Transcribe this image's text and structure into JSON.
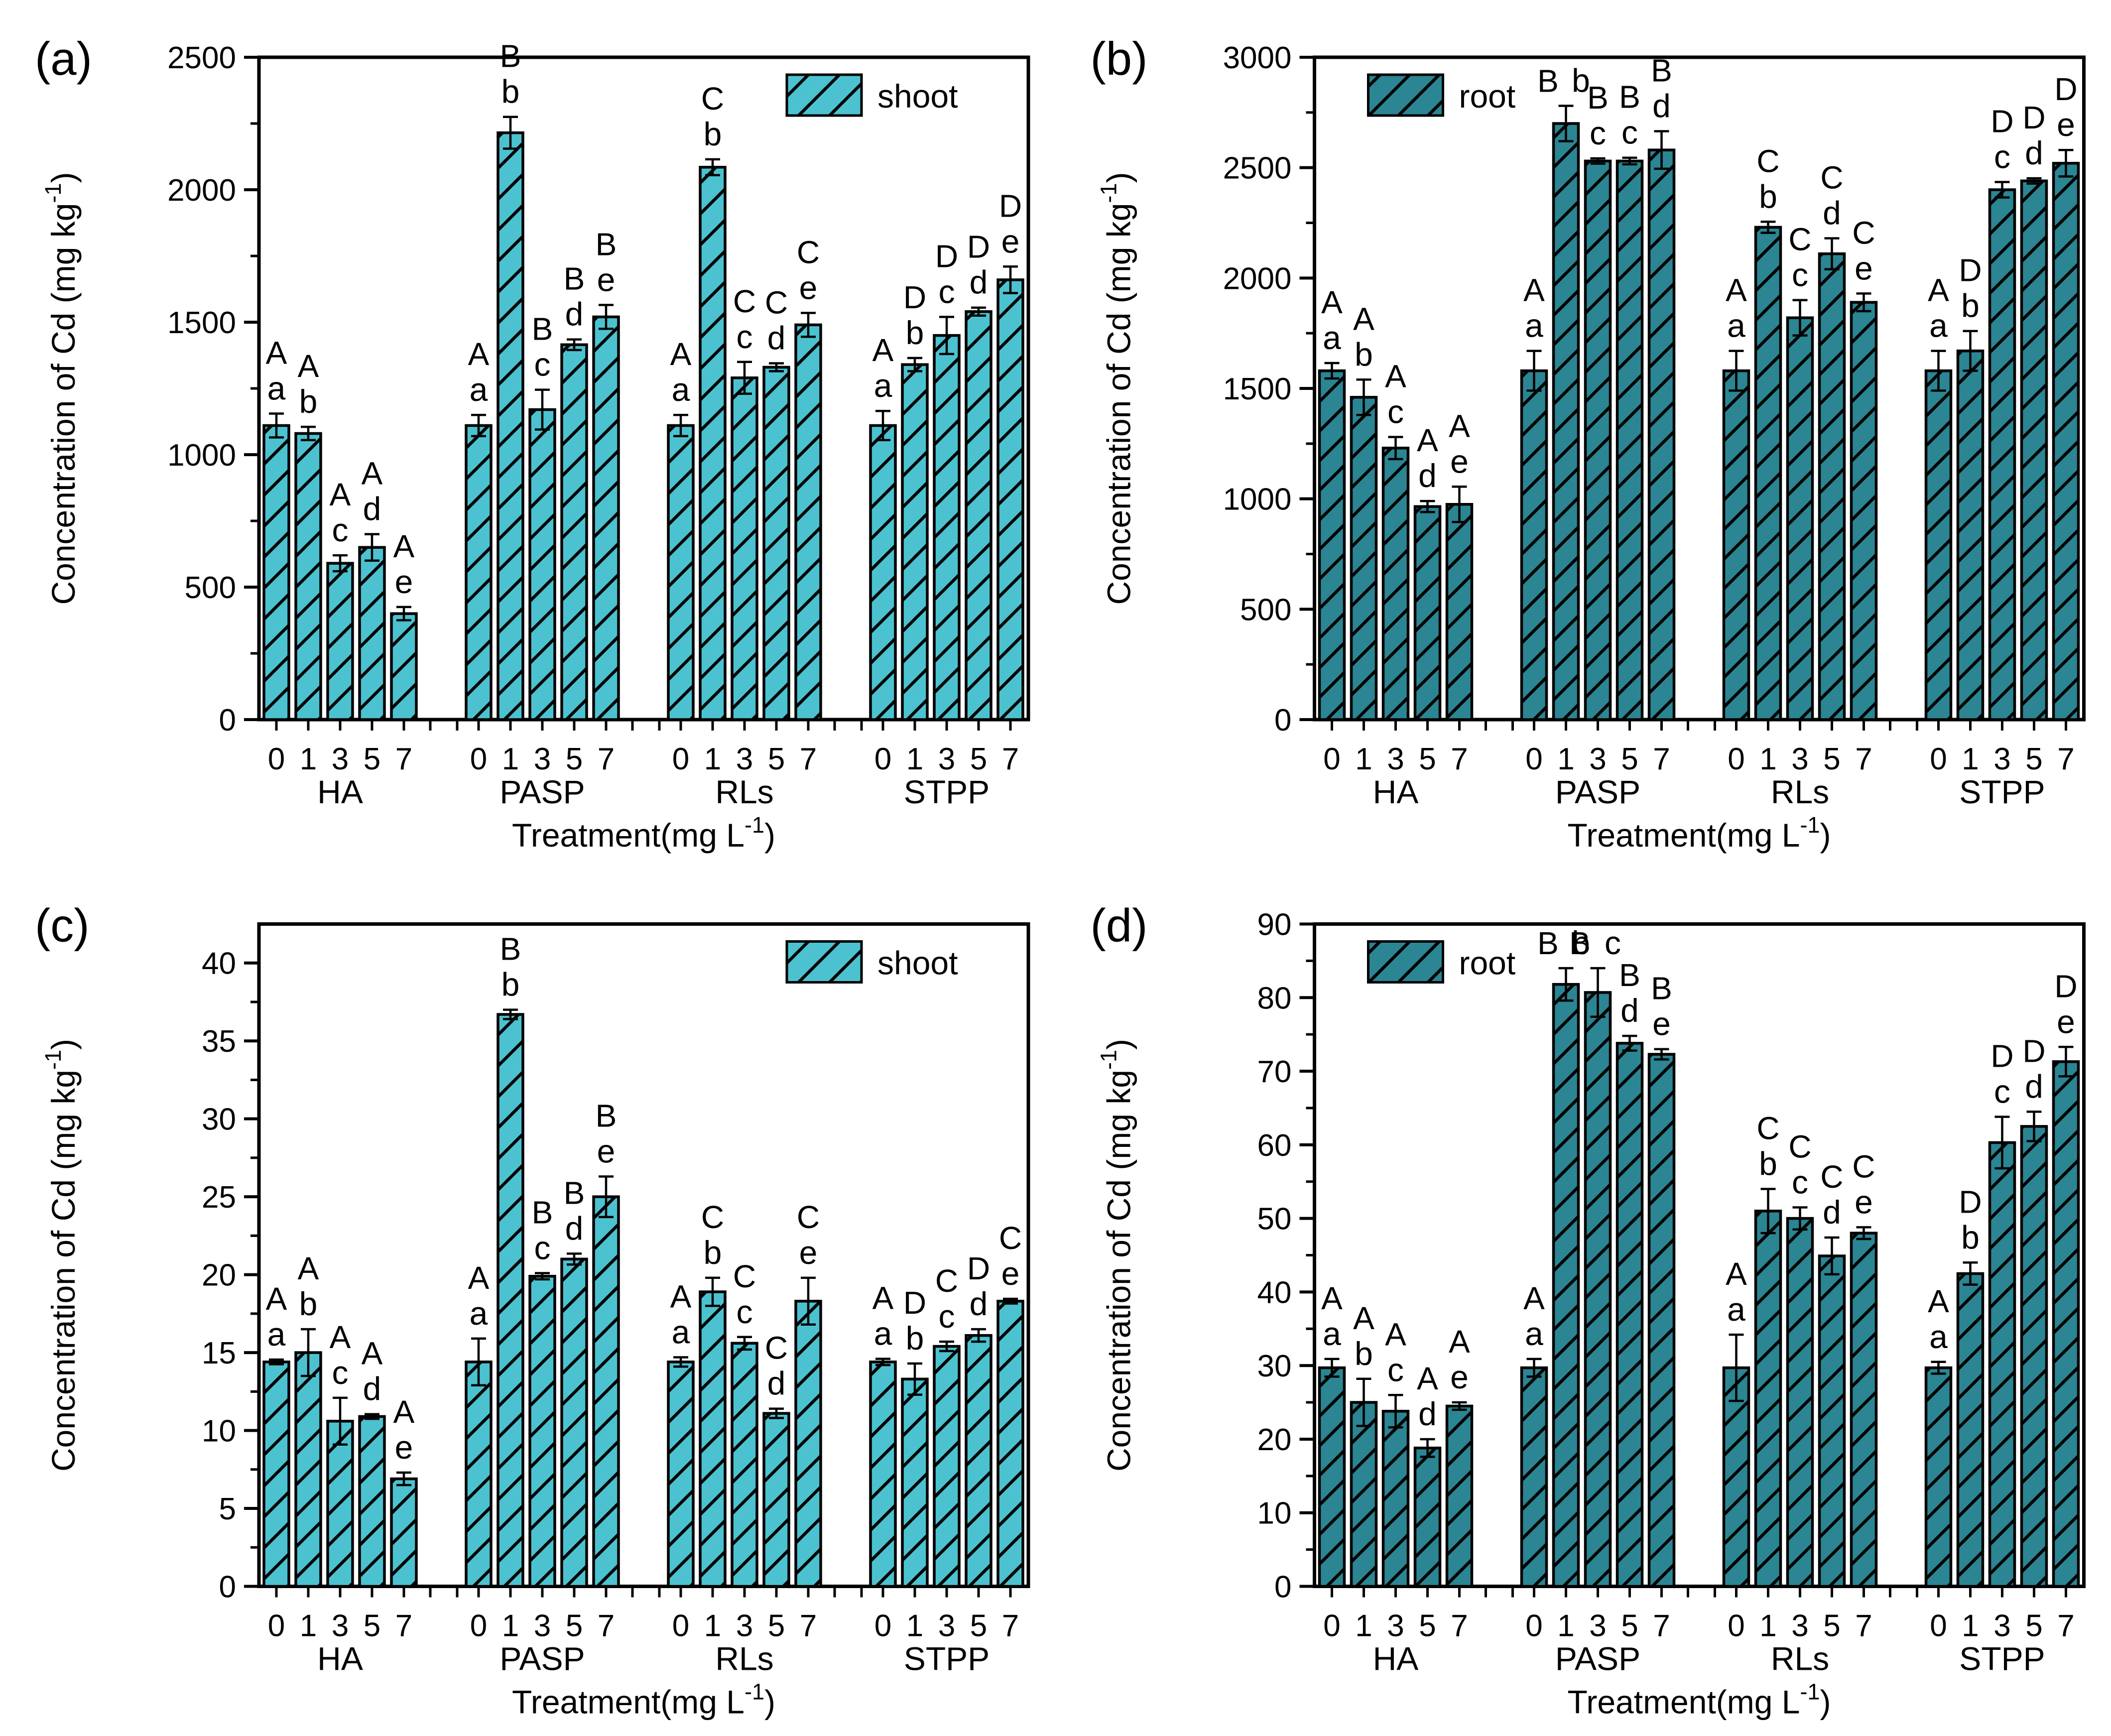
{
  "figure": {
    "xlabel": {
      "pre": "Treatment(mg L",
      "sup": "-1",
      "post": ")"
    },
    "ylabel": {
      "pre": "Concentration of Cd (mg kg",
      "sup": "-1",
      "post": ")"
    },
    "group_names": [
      "HA",
      "PASP",
      "RLs",
      "STPP"
    ],
    "doses": [
      "0",
      "1",
      "3",
      "5",
      "7"
    ],
    "colors": {
      "shoot_fill": "#4cc2d0",
      "root_fill": "#2b8593",
      "letter_blue": "#5fb0f0",
      "letter_black": "#000000",
      "axis": "#000000",
      "background": "#ffffff"
    }
  },
  "chart_data": [
    {
      "id": "a",
      "type": "bar",
      "panel_tag": "(a)",
      "legend_label": "shoot",
      "legend_pos": "top-right",
      "series_color_key": "shoot_fill",
      "ylim": [
        0,
        2500
      ],
      "axis_max": 2500,
      "ytick_major": 500,
      "ytick_minor": 250,
      "categories": [
        "0",
        "1",
        "3",
        "5",
        "7"
      ],
      "groups": [
        {
          "name": "HA",
          "values": [
            1110,
            1080,
            590,
            650,
            400
          ],
          "errors": [
            45,
            25,
            30,
            50,
            25
          ],
          "letters": [
            "Aa",
            "Ab",
            "Ac",
            "Ad",
            "Ae"
          ]
        },
        {
          "name": "PASP",
          "values": [
            1110,
            2215,
            1170,
            1415,
            1520
          ],
          "errors": [
            40,
            60,
            75,
            20,
            45
          ],
          "letters": [
            "Aa",
            "Bb",
            "Bc",
            "Bd",
            "Be"
          ]
        },
        {
          "name": "RLs",
          "values": [
            1110,
            2085,
            1290,
            1330,
            1490
          ],
          "errors": [
            40,
            30,
            60,
            15,
            45
          ],
          "letters": [
            "Aa",
            "Cb",
            "Cc",
            "Cd",
            "Ce"
          ]
        },
        {
          "name": "STPP",
          "values": [
            1110,
            1340,
            1450,
            1540,
            1660
          ],
          "errors": [
            55,
            25,
            70,
            15,
            50
          ],
          "letters": [
            "Aa",
            "Db",
            "Dc",
            "Dd",
            "De"
          ]
        }
      ]
    },
    {
      "id": "b",
      "type": "bar",
      "panel_tag": "(b)",
      "legend_label": "root",
      "legend_pos": "top-left",
      "series_color_key": "root_fill",
      "ylim": [
        0,
        3000
      ],
      "axis_max": 3000,
      "ytick_major": 500,
      "ytick_minor": 250,
      "categories": [
        "0",
        "1",
        "3",
        "5",
        "7"
      ],
      "groups": [
        {
          "name": "HA",
          "values": [
            1580,
            1460,
            1230,
            965,
            975
          ],
          "errors": [
            35,
            80,
            50,
            25,
            80
          ],
          "letters": [
            "Aa",
            "Ab",
            "Ac",
            "Ad",
            "Ae"
          ]
        },
        {
          "name": "PASP",
          "values": [
            1580,
            2700,
            2530,
            2530,
            2580
          ],
          "errors": [
            90,
            80,
            12,
            15,
            85
          ],
          "letters": [
            "Aa",
            "Bb",
            "Bc",
            "Bc",
            "Bd"
          ],
          "inline": [
            0,
            1,
            0,
            0,
            0
          ]
        },
        {
          "name": "RLs",
          "values": [
            1580,
            2230,
            1820,
            2110,
            1890
          ],
          "errors": [
            90,
            25,
            80,
            70,
            40
          ],
          "letters": [
            "Aa",
            "Cb",
            "Cc",
            "Cd",
            "Ce"
          ]
        },
        {
          "name": "STPP",
          "values": [
            1580,
            1670,
            2400,
            2440,
            2520
          ],
          "errors": [
            90,
            90,
            35,
            12,
            60
          ],
          "letters": [
            "Aa",
            "Db",
            "Dc",
            "Dd",
            "De"
          ]
        }
      ]
    },
    {
      "id": "c",
      "type": "bar",
      "panel_tag": "(c)",
      "legend_label": "shoot",
      "legend_pos": "top-right",
      "series_color_key": "shoot_fill",
      "ylim": [
        0,
        40
      ],
      "axis_max": 42.5,
      "ytick_major": 5,
      "ytick_minor": 2.5,
      "categories": [
        "0",
        "1",
        "3",
        "5",
        "7"
      ],
      "groups": [
        {
          "name": "HA",
          "values": [
            14.4,
            15.0,
            10.6,
            10.9,
            6.9
          ],
          "errors": [
            0.15,
            1.5,
            1.5,
            0.15,
            0.4
          ],
          "letters": [
            "Aa",
            "Ab",
            "Ac",
            "Ad",
            "Ae"
          ]
        },
        {
          "name": "PASP",
          "values": [
            14.4,
            36.7,
            19.9,
            21.0,
            25.0
          ],
          "errors": [
            1.5,
            0.3,
            0.2,
            0.35,
            1.3
          ],
          "letters": [
            "Aa",
            "Bb",
            "Bc",
            "Bd",
            "Be"
          ]
        },
        {
          "name": "RLs",
          "values": [
            14.4,
            18.9,
            15.6,
            11.1,
            18.3
          ],
          "errors": [
            0.3,
            0.9,
            0.4,
            0.3,
            1.5
          ],
          "letters": [
            "Aa",
            "Cb",
            "Cc",
            "Cd",
            "Ce"
          ]
        },
        {
          "name": "STPP",
          "values": [
            14.4,
            13.3,
            15.4,
            16.1,
            18.3
          ],
          "errors": [
            0.2,
            1.0,
            0.3,
            0.4,
            0.15
          ],
          "letters": [
            "Aa",
            "Db",
            "Cc",
            "Dd",
            "Ce"
          ]
        }
      ]
    },
    {
      "id": "d",
      "type": "bar",
      "panel_tag": "(d)",
      "legend_label": "root",
      "legend_pos": "top-left",
      "series_color_key": "root_fill",
      "ylim": [
        0,
        90
      ],
      "axis_max": 90,
      "ytick_major": 10,
      "ytick_minor": 5,
      "categories": [
        "0",
        "1",
        "3",
        "5",
        "7"
      ],
      "groups": [
        {
          "name": "HA",
          "values": [
            29.7,
            25.0,
            23.8,
            18.8,
            24.5
          ],
          "errors": [
            1.2,
            3.2,
            2.2,
            1.2,
            0.5
          ],
          "letters": [
            "Aa",
            "Ab",
            "Ac",
            "Ad",
            "Ae"
          ]
        },
        {
          "name": "PASP",
          "values": [
            29.7,
            81.8,
            80.7,
            73.8,
            72.3
          ],
          "errors": [
            1.2,
            2.2,
            3.3,
            1.0,
            0.7
          ],
          "letters": [
            "Aa",
            "Bb",
            "Bc",
            "Bd",
            "Be"
          ],
          "inline": [
            0,
            1,
            1,
            0,
            0
          ]
        },
        {
          "name": "RLs",
          "values": [
            29.7,
            51.0,
            50.0,
            44.9,
            48.0
          ],
          "errors": [
            4.5,
            3.0,
            1.5,
            2.5,
            0.8
          ],
          "letters": [
            "Aa",
            "Cb",
            "Cc",
            "Cd",
            "Ce"
          ]
        },
        {
          "name": "STPP",
          "values": [
            29.7,
            42.5,
            60.3,
            62.5,
            71.3
          ],
          "errors": [
            0.8,
            1.5,
            3.5,
            2.0,
            2.0
          ],
          "letters": [
            "Aa",
            "Db",
            "Dc",
            "Dd",
            "De"
          ]
        }
      ]
    }
  ]
}
